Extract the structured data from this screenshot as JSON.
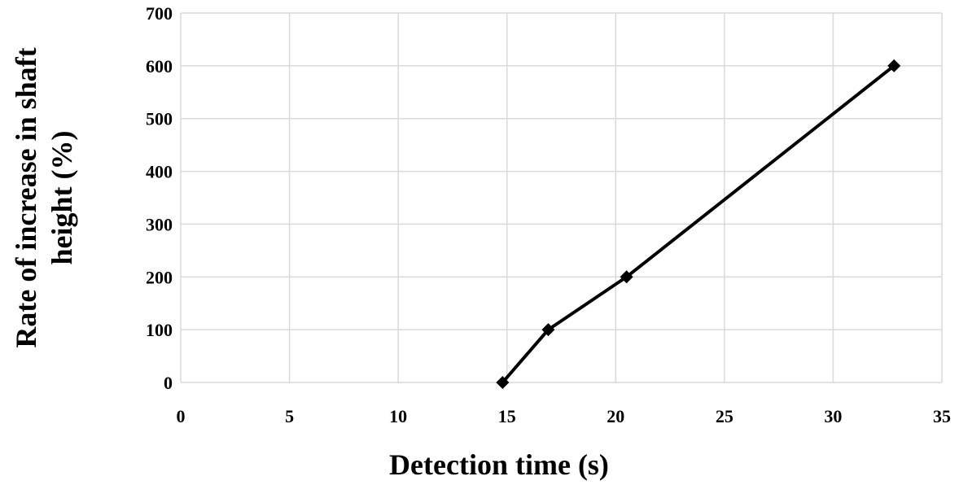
{
  "chart_data": {
    "type": "line",
    "xlabel": "Detection time (s)",
    "ylabel_lines": [
      "Rate of increase in shaft",
      "height (%)"
    ],
    "xlim": [
      0,
      35
    ],
    "ylim": [
      0,
      700
    ],
    "xticks": [
      "0",
      "5",
      "10",
      "15",
      "20",
      "25",
      "30",
      "35"
    ],
    "yticks": [
      "0",
      "100",
      "200",
      "300",
      "400",
      "500",
      "600",
      "700"
    ],
    "grid": true,
    "series": [
      {
        "marker": "diamond",
        "color": "#000000",
        "x": [
          14.8,
          16.9,
          20.5,
          32.8
        ],
        "y": [
          0,
          100,
          200,
          600
        ]
      }
    ]
  }
}
